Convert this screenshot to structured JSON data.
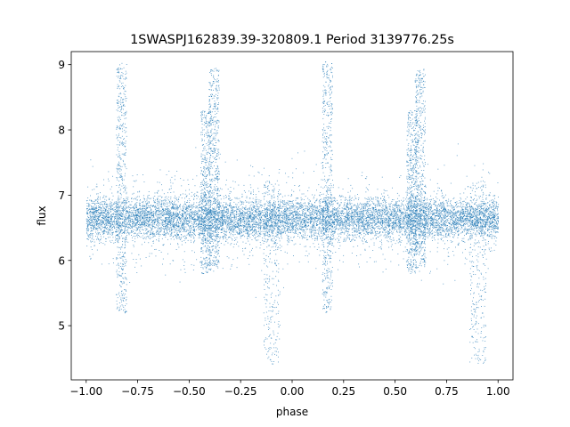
{
  "chart_data": {
    "type": "scatter",
    "title": "1SWASPJ162839.39-320809.1 Period 3139776.25s",
    "xlabel": "phase",
    "ylabel": "flux",
    "xlim": [
      -1.0725,
      1.0725
    ],
    "ylim": [
      4.17,
      9.2
    ],
    "xticks": [
      -1.0,
      -0.75,
      -0.5,
      -0.25,
      0.0,
      0.25,
      0.5,
      0.75,
      1.0
    ],
    "xtick_labels": [
      "−1.00",
      "−0.75",
      "−0.50",
      "−0.25",
      "0.00",
      "0.25",
      "0.50",
      "0.75",
      "1.00"
    ],
    "yticks": [
      5,
      6,
      7,
      8,
      9
    ],
    "ytick_labels": [
      "5",
      "6",
      "7",
      "8",
      "9"
    ],
    "grid": false,
    "marker_color": "#1f77b4",
    "series": [
      {
        "baseline_flux": 6.65,
        "phase_range": [
          -1.0,
          1.0
        ],
        "approx_points": 14000,
        "dense_spikes": [
          {
            "phase": -0.83,
            "flux_max": 9.05,
            "flux_min": 5.2
          },
          {
            "phase": -0.42,
            "flux_max": 8.3,
            "flux_min": 5.8
          },
          {
            "phase": -0.38,
            "flux_max": 8.95,
            "flux_min": 5.9
          },
          {
            "phase": 0.17,
            "flux_max": 9.05,
            "flux_min": 5.2
          },
          {
            "phase": 0.58,
            "flux_max": 8.3,
            "flux_min": 5.8
          },
          {
            "phase": 0.62,
            "flux_max": 8.95,
            "flux_min": 5.9
          }
        ],
        "dips": [
          {
            "phase": -0.1,
            "flux_min": 4.4
          },
          {
            "phase": 0.9,
            "flux_min": 4.4
          }
        ]
      }
    ]
  }
}
